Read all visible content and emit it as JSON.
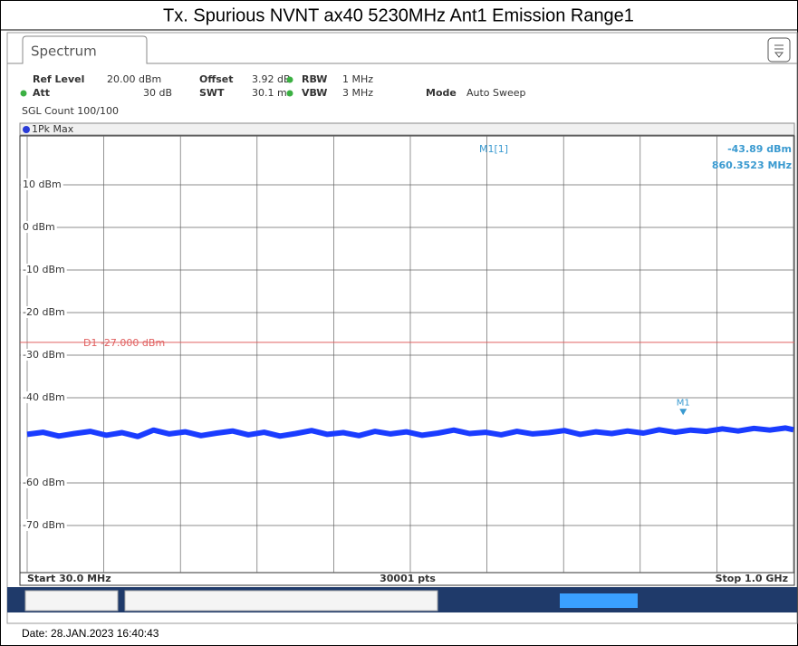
{
  "title": "Tx. Spurious NVNT ax40 5230MHz Ant1 Emission Range1",
  "tab": "Spectrum",
  "settings": [
    {
      "label": "Ref Level",
      "value": "20.00 dBm"
    },
    {
      "label": "Offset",
      "value": "3.92 dB"
    },
    {
      "label": "RBW",
      "value": "1 MHz"
    },
    {
      "label": "Att",
      "value": "30 dB"
    },
    {
      "label": "SWT",
      "value": "30.1 ms"
    },
    {
      "label": "VBW",
      "value": "3 MHz"
    },
    {
      "label": "Mode",
      "value": "Auto Sweep"
    }
  ],
  "count": "SGL Count 100/100",
  "trace_label": "1Pk Max",
  "footer": {
    "start": "Start 30.0 MHz",
    "points": "30001 pts",
    "stop": "Stop 1.0 GHz"
  },
  "date": "Date: 28.JAN.2023  16:40:43",
  "chart_data": {
    "type": "line",
    "xlim": [
      30,
      1000
    ],
    "ylim": [
      -80,
      20
    ],
    "yticks": [
      {
        "value": 10,
        "label": "10 dBm"
      },
      {
        "value": 0,
        "label": "0 dBm"
      },
      {
        "value": -10,
        "label": "-10 dBm"
      },
      {
        "value": -20,
        "label": "-20 dBm"
      },
      {
        "value": -30,
        "label": "-30 dBm"
      },
      {
        "value": -40,
        "label": "-40 dBm"
      },
      {
        "value": -60,
        "label": "-60 dBm"
      },
      {
        "value": -70,
        "label": "-70 dBm"
      }
    ],
    "grid": true,
    "display_line": {
      "label": "D1 -27.000 dBm",
      "value": -27,
      "color": "#e06060"
    },
    "marker": {
      "name": "M1",
      "readout": "M1[1]",
      "x": 860.3523,
      "y": -43.89,
      "y_label": "-43.89 dBm",
      "x_label": "860.3523 MHz",
      "color": "#3a9ad0"
    },
    "x": [
      30,
      50,
      70,
      90,
      110,
      130,
      150,
      170,
      190,
      210,
      230,
      250,
      270,
      290,
      310,
      330,
      350,
      370,
      390,
      410,
      430,
      450,
      470,
      490,
      510,
      530,
      550,
      570,
      590,
      610,
      630,
      650,
      670,
      690,
      710,
      730,
      750,
      770,
      790,
      810,
      830,
      850,
      870,
      890,
      910,
      930,
      950,
      970,
      990,
      1000
    ],
    "series": [
      {
        "name": "1Pk Max",
        "color": "#1a3cff",
        "values": [
          -48.6,
          -48.1,
          -49.0,
          -48.4,
          -47.9,
          -48.8,
          -48.2,
          -49.1,
          -47.6,
          -48.5,
          -48.0,
          -48.9,
          -48.3,
          -47.8,
          -48.7,
          -48.1,
          -49.0,
          -48.4,
          -47.7,
          -48.6,
          -48.2,
          -48.9,
          -47.9,
          -48.5,
          -48.0,
          -48.8,
          -48.3,
          -47.6,
          -48.4,
          -48.1,
          -48.7,
          -47.9,
          -48.5,
          -48.2,
          -47.7,
          -48.6,
          -48.0,
          -48.4,
          -47.8,
          -48.3,
          -47.5,
          -48.1,
          -47.6,
          -47.9,
          -47.3,
          -47.8,
          -47.2,
          -47.6,
          -47.1,
          -47.5
        ]
      }
    ]
  }
}
